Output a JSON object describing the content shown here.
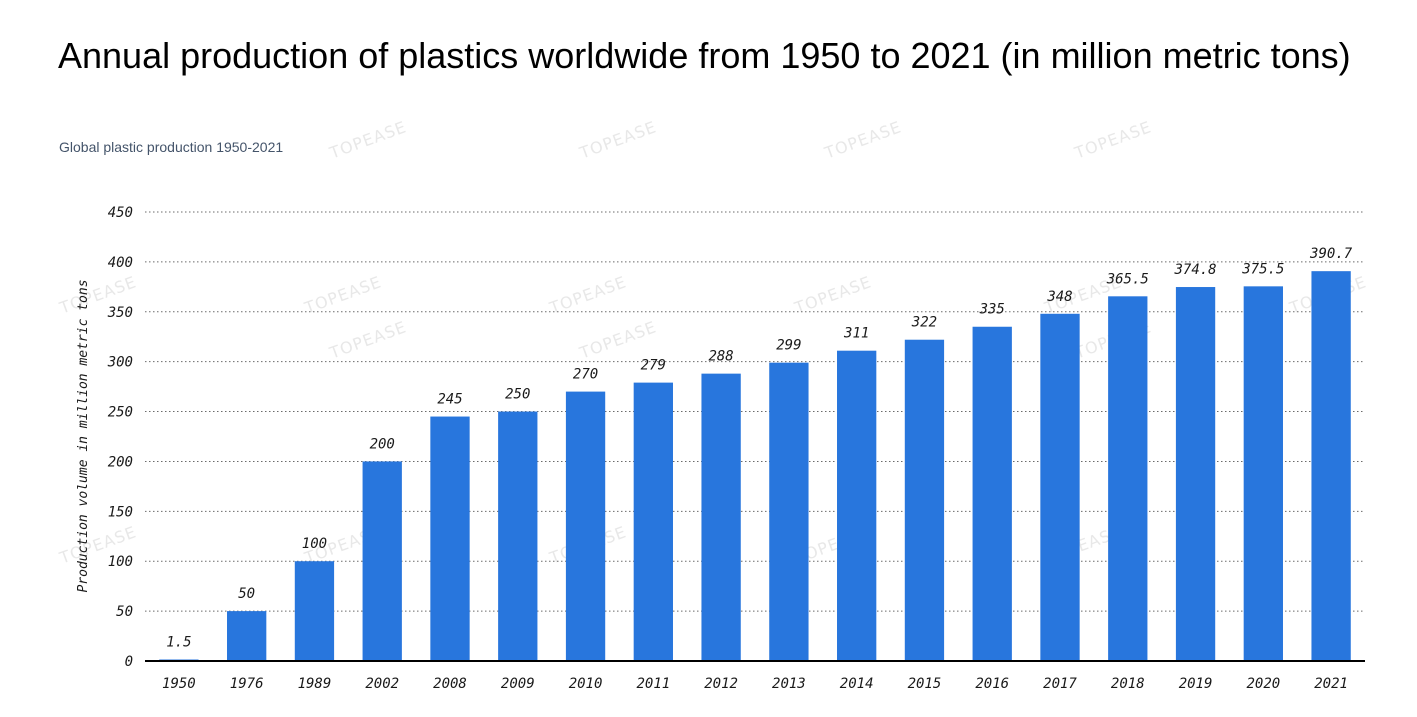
{
  "chart_data": {
    "type": "bar",
    "title": "Annual production of plastics worldwide from 1950 to 2021 (in million metric tons)",
    "subtitle": "Global plastic production 1950-2021",
    "xlabel": "",
    "ylabel": "Production volume in million metric tons",
    "ylim": [
      0,
      450
    ],
    "y_ticks": [
      0,
      50,
      100,
      150,
      200,
      250,
      300,
      350,
      400,
      450
    ],
    "grid": true,
    "categories": [
      "1950",
      "1976",
      "1989",
      "2002",
      "2008",
      "2009",
      "2010",
      "2011",
      "2012",
      "2013",
      "2014",
      "2015",
      "2016",
      "2017",
      "2018",
      "2019",
      "2020",
      "2021"
    ],
    "values": [
      1.5,
      50,
      100,
      200,
      245,
      250,
      270,
      279,
      288,
      299,
      311,
      322,
      335,
      348,
      365.5,
      374.8,
      375.5,
      390.7
    ],
    "data_labels": [
      "1.5",
      "50",
      "100",
      "200",
      "245",
      "250",
      "270",
      "279",
      "288",
      "299",
      "311",
      "322",
      "335",
      "348",
      "365.5",
      "374.8",
      "375.5",
      "390.7"
    ],
    "bar_color": "#2876dd",
    "watermark": "TOPEASE"
  }
}
